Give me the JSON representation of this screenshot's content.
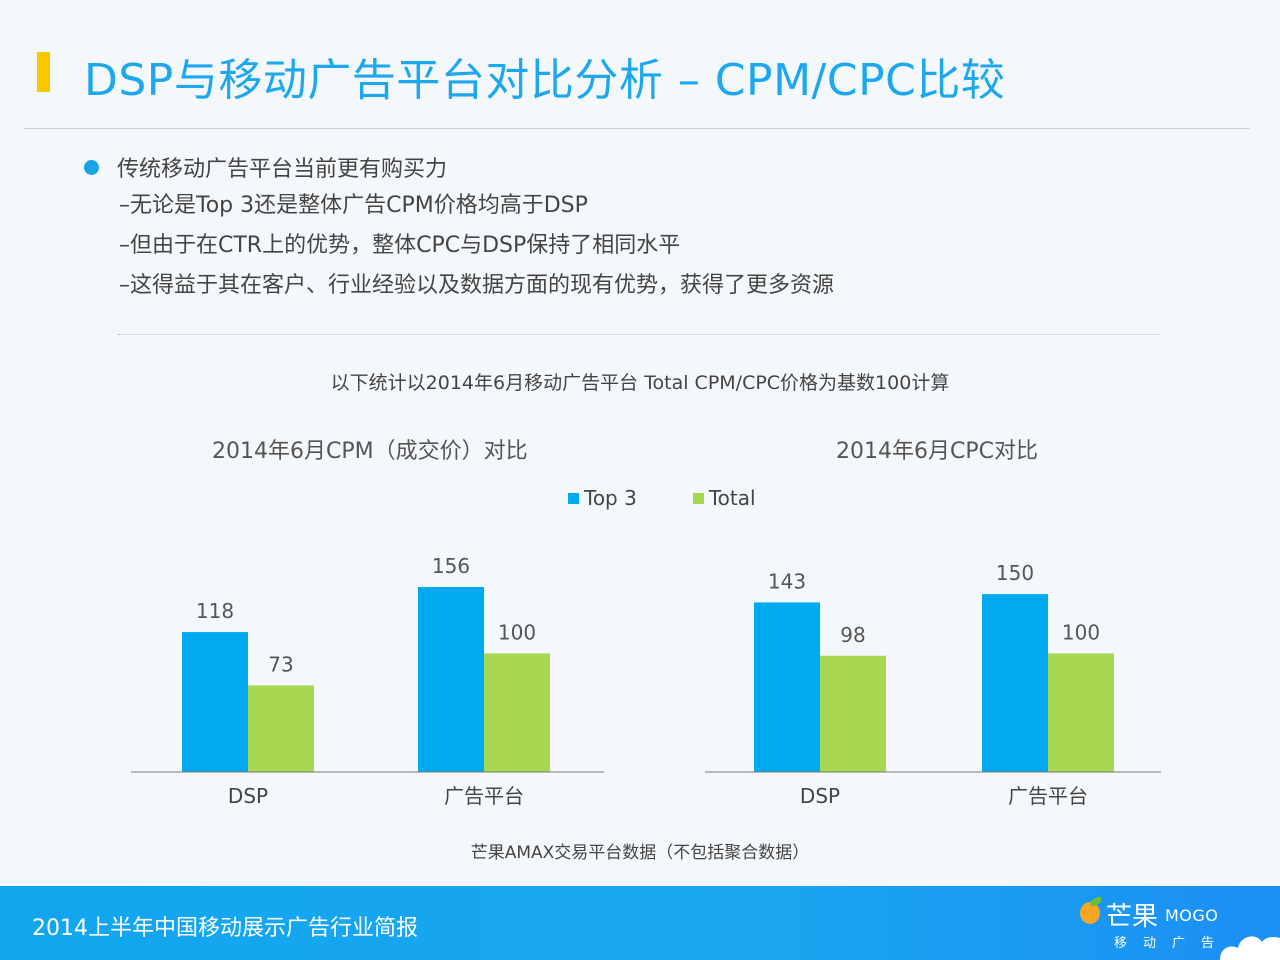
{
  "header": {
    "title": "DSP与移动广告平台对比分析 – CPM/CPC比较"
  },
  "bullets": {
    "main": "传统移动广告平台当前更有购买力",
    "subs": [
      "–无论是Top 3还是整体广告CPM价格均高于DSP",
      "–但由于在CTR上的优势，整体CPC与DSP保持了相同水平",
      "–这得益于其在客户、行业经验以及数据方面的现有优势，获得了更多资源"
    ]
  },
  "note_top": "以下统计以2014年6月移动广告平台 Total CPM/CPC价格为基数100计算",
  "note_bottom": "芒果AMAX交易平台数据（不包括聚合数据）",
  "legend": {
    "top3": "Top 3",
    "total": "Total"
  },
  "colors": {
    "top3": "#00aaee",
    "total": "#a7d651",
    "accent": "#1da8ee",
    "title_bar": "#f7c800"
  },
  "chart_data": [
    {
      "type": "bar",
      "title": "2014年6月CPM（成交价）对比",
      "categories": [
        "DSP",
        "广告平台"
      ],
      "series": [
        {
          "name": "Top 3",
          "values": [
            118,
            156
          ]
        },
        {
          "name": "Total",
          "values": [
            73,
            100
          ]
        }
      ],
      "ylim": [
        0,
        160
      ],
      "grid": false,
      "legend": "top-center"
    },
    {
      "type": "bar",
      "title": "2014年6月CPC对比",
      "categories": [
        "DSP",
        "广告平台"
      ],
      "series": [
        {
          "name": "Top 3",
          "values": [
            143,
            150
          ]
        },
        {
          "name": "Total",
          "values": [
            98,
            100
          ]
        }
      ],
      "ylim": [
        0,
        160
      ],
      "grid": false,
      "legend": "top-center"
    }
  ],
  "footer": {
    "text": "2014上半年中国移动展示广告行业简报",
    "logo_cn": "芒果",
    "logo_en": "MOGO",
    "logo_sub": "移动广告"
  }
}
